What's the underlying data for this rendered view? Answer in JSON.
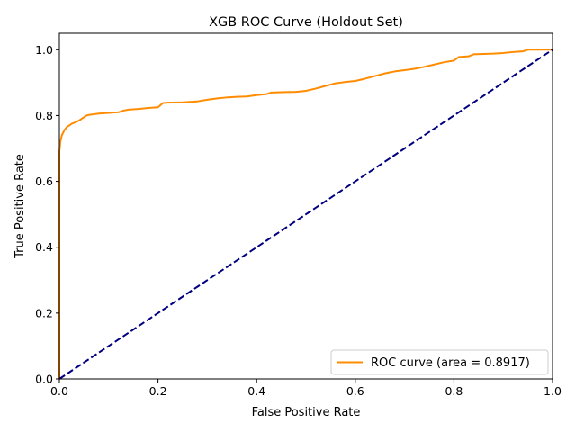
{
  "chart_data": {
    "type": "line",
    "title": "XGB ROC Curve (Holdout Set)",
    "xlabel": "False Positive Rate",
    "ylabel": "True Positive Rate",
    "xlim": [
      0.0,
      1.0
    ],
    "ylim": [
      0.0,
      1.05
    ],
    "xticks": [
      "0.0",
      "0.2",
      "0.4",
      "0.6",
      "0.8",
      "1.0"
    ],
    "yticks": [
      "0.0",
      "0.2",
      "0.4",
      "0.6",
      "0.8",
      "1.0"
    ],
    "grid": false,
    "legend_position": "lower-right",
    "series": [
      {
        "name": "ROC curve (area = 0.8917)",
        "color": "#ff8c00",
        "style": "solid",
        "x": [
          0.0,
          0.0,
          0.0,
          0.002,
          0.005,
          0.01,
          0.015,
          0.02,
          0.025,
          0.03,
          0.04,
          0.05,
          0.055,
          0.06,
          0.07,
          0.08,
          0.09,
          0.1,
          0.12,
          0.13,
          0.14,
          0.16,
          0.18,
          0.2,
          0.21,
          0.22,
          0.25,
          0.28,
          0.3,
          0.32,
          0.34,
          0.36,
          0.38,
          0.4,
          0.42,
          0.43,
          0.45,
          0.48,
          0.5,
          0.52,
          0.54,
          0.56,
          0.58,
          0.6,
          0.62,
          0.64,
          0.66,
          0.68,
          0.7,
          0.72,
          0.74,
          0.76,
          0.78,
          0.8,
          0.81,
          0.83,
          0.84,
          0.88,
          0.9,
          0.92,
          0.94,
          0.95,
          1.0
        ],
        "y": [
          0.0,
          0.6,
          0.69,
          0.72,
          0.74,
          0.755,
          0.765,
          0.77,
          0.775,
          0.778,
          0.785,
          0.795,
          0.8,
          0.802,
          0.804,
          0.806,
          0.807,
          0.808,
          0.81,
          0.815,
          0.818,
          0.82,
          0.823,
          0.825,
          0.838,
          0.839,
          0.84,
          0.843,
          0.848,
          0.852,
          0.855,
          0.857,
          0.858,
          0.862,
          0.865,
          0.87,
          0.871,
          0.872,
          0.875,
          0.882,
          0.89,
          0.898,
          0.902,
          0.905,
          0.912,
          0.92,
          0.928,
          0.934,
          0.938,
          0.942,
          0.948,
          0.955,
          0.962,
          0.967,
          0.978,
          0.98,
          0.986,
          0.988,
          0.99,
          0.993,
          0.995,
          1.0,
          1.0
        ]
      },
      {
        "name": "",
        "color": "#000080",
        "style": "dashed",
        "x": [
          0.0,
          1.0
        ],
        "y": [
          0.0,
          1.0
        ]
      }
    ]
  }
}
